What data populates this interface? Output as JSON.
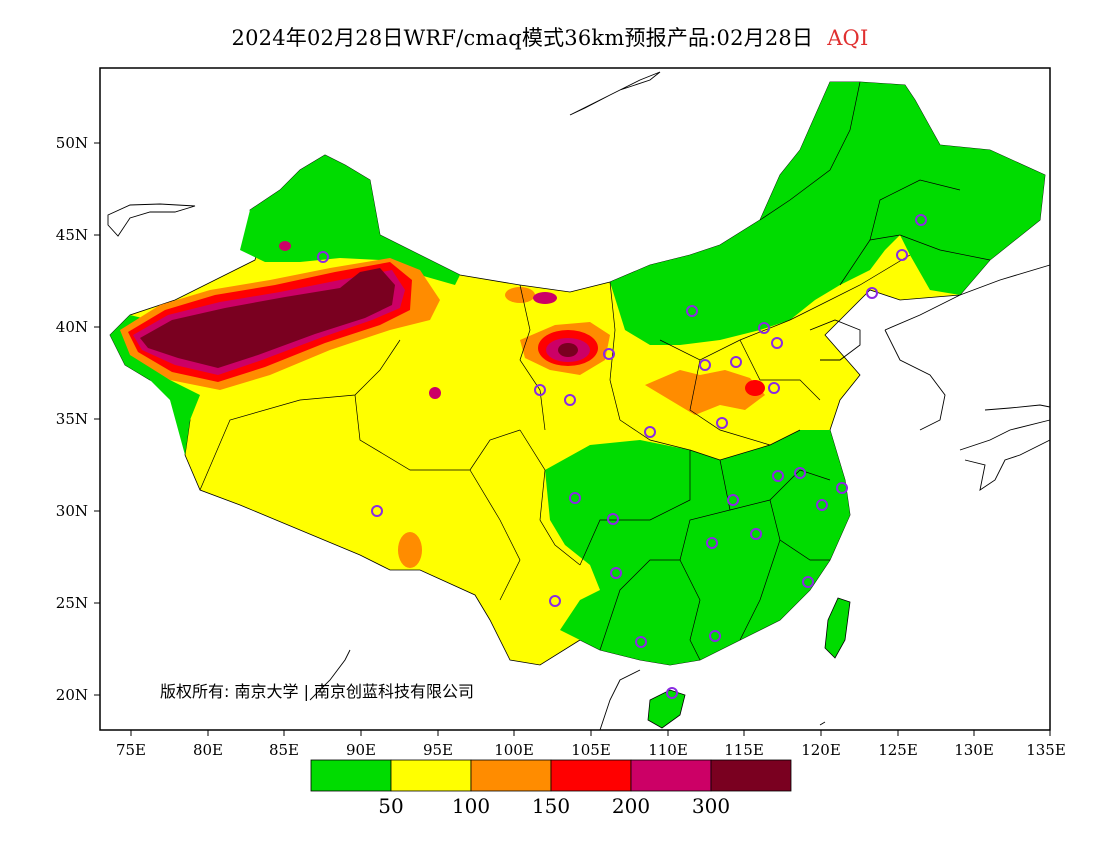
{
  "title": {
    "main": "2024年02月28日WRF/cmaq模式36km预报产品:02月28日",
    "variable": "AQI"
  },
  "axes": {
    "lat_ticks": [
      "50N",
      "45N",
      "40N",
      "35N",
      "30N",
      "25N",
      "20N"
    ],
    "lon_ticks": [
      "75E",
      "80E",
      "85E",
      "90E",
      "95E",
      "100E",
      "105E",
      "110E",
      "115E",
      "120E",
      "125E",
      "130E",
      "135E"
    ]
  },
  "copyright": "版权所有: 南京大学 | 南京创蓝科技有限公司",
  "legend": {
    "colors": [
      "#00dc00",
      "#ffff00",
      "#ff8c00",
      "#ff0000",
      "#cc0066",
      "#7a0020"
    ],
    "labels": [
      "50",
      "100",
      "150",
      "200",
      "300"
    ]
  },
  "map_colors": {
    "good": "#00dc00",
    "moderate": "#ffff00",
    "sensitive": "#ff8c00",
    "unhealthy": "#ff0000",
    "very_unhealthy": "#cc0066",
    "hazardous": "#7a0020"
  }
}
